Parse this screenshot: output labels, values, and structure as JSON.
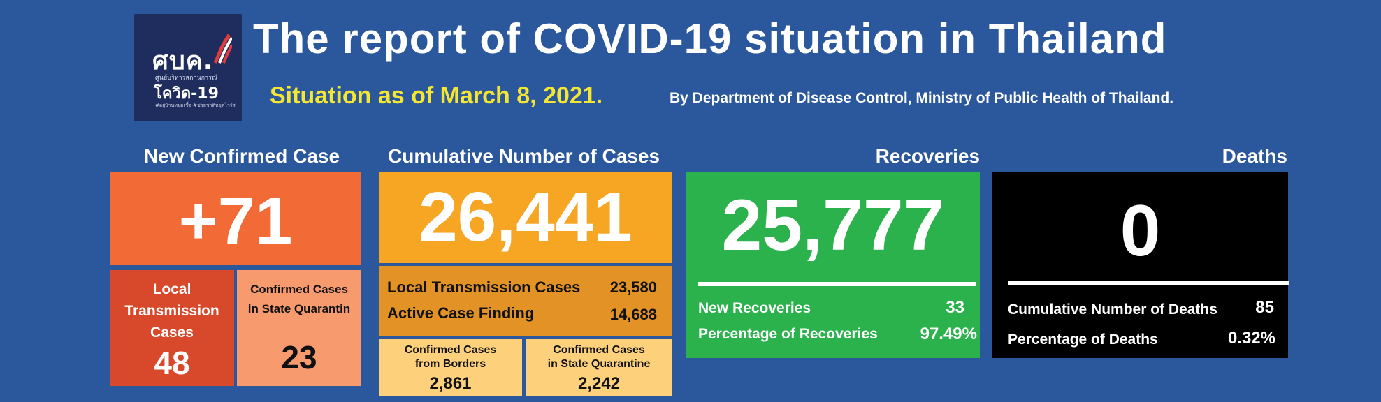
{
  "logo": {
    "abbrev": "ศบค.",
    "line2": "ศูนย์บริหารสถานการณ์",
    "line3": "โควิด-19",
    "line4": "#อยู่บ้านหยุดเชื้อ #ช่วยชาติหยุดไวรัส"
  },
  "header": {
    "title": "The report of COVID-19 situation in Thailand",
    "subtitle": "Situation as of March 8, 2021.",
    "byline": "By Department of Disease Control, Ministry of Public Health of Thailand."
  },
  "new_confirmed": {
    "heading": "New Confirmed Case",
    "value": "+71",
    "local_label": [
      "Local",
      "Transmission",
      "Cases"
    ],
    "local_value": "48",
    "quarantine_label": [
      "Confirmed Cases",
      "in State Quarantin"
    ],
    "quarantine_value": "23"
  },
  "cumulative": {
    "heading": "Cumulative Number of Cases",
    "value": "26,441",
    "local_label": "Local Transmission Cases",
    "local_value": "23,580",
    "active_label": "Active Case Finding",
    "active_value": "14,688",
    "borders_label": [
      "Confirmed Cases",
      "from Borders"
    ],
    "borders_value": "2,861",
    "quarantine_label": [
      "Confirmed Cases",
      "in State Quarantine"
    ],
    "quarantine_value": "2,242"
  },
  "recoveries": {
    "heading": "Recoveries",
    "value": "25,777",
    "new_label": "New Recoveries",
    "new_value": "33",
    "pct_label": "Percentage of Recoveries",
    "pct_value": "97.49%"
  },
  "deaths": {
    "heading": "Deaths",
    "value": "0",
    "cum_label": "Cumulative Number of Deaths",
    "cum_value": "85",
    "pct_label": "Percentage of Deaths",
    "pct_value": "0.32%"
  },
  "colors": {
    "background": "#2b579c",
    "new_case": "#f26a36",
    "local": "#d8482a",
    "quarantine": "#f79a6e",
    "cumulative": "#f6a623",
    "cumulative_sub": "#e39325",
    "cumulative_light": "#fdd17c",
    "recoveries": "#2bb24c",
    "deaths": "#000000",
    "title_yellow": "#f5e631"
  }
}
